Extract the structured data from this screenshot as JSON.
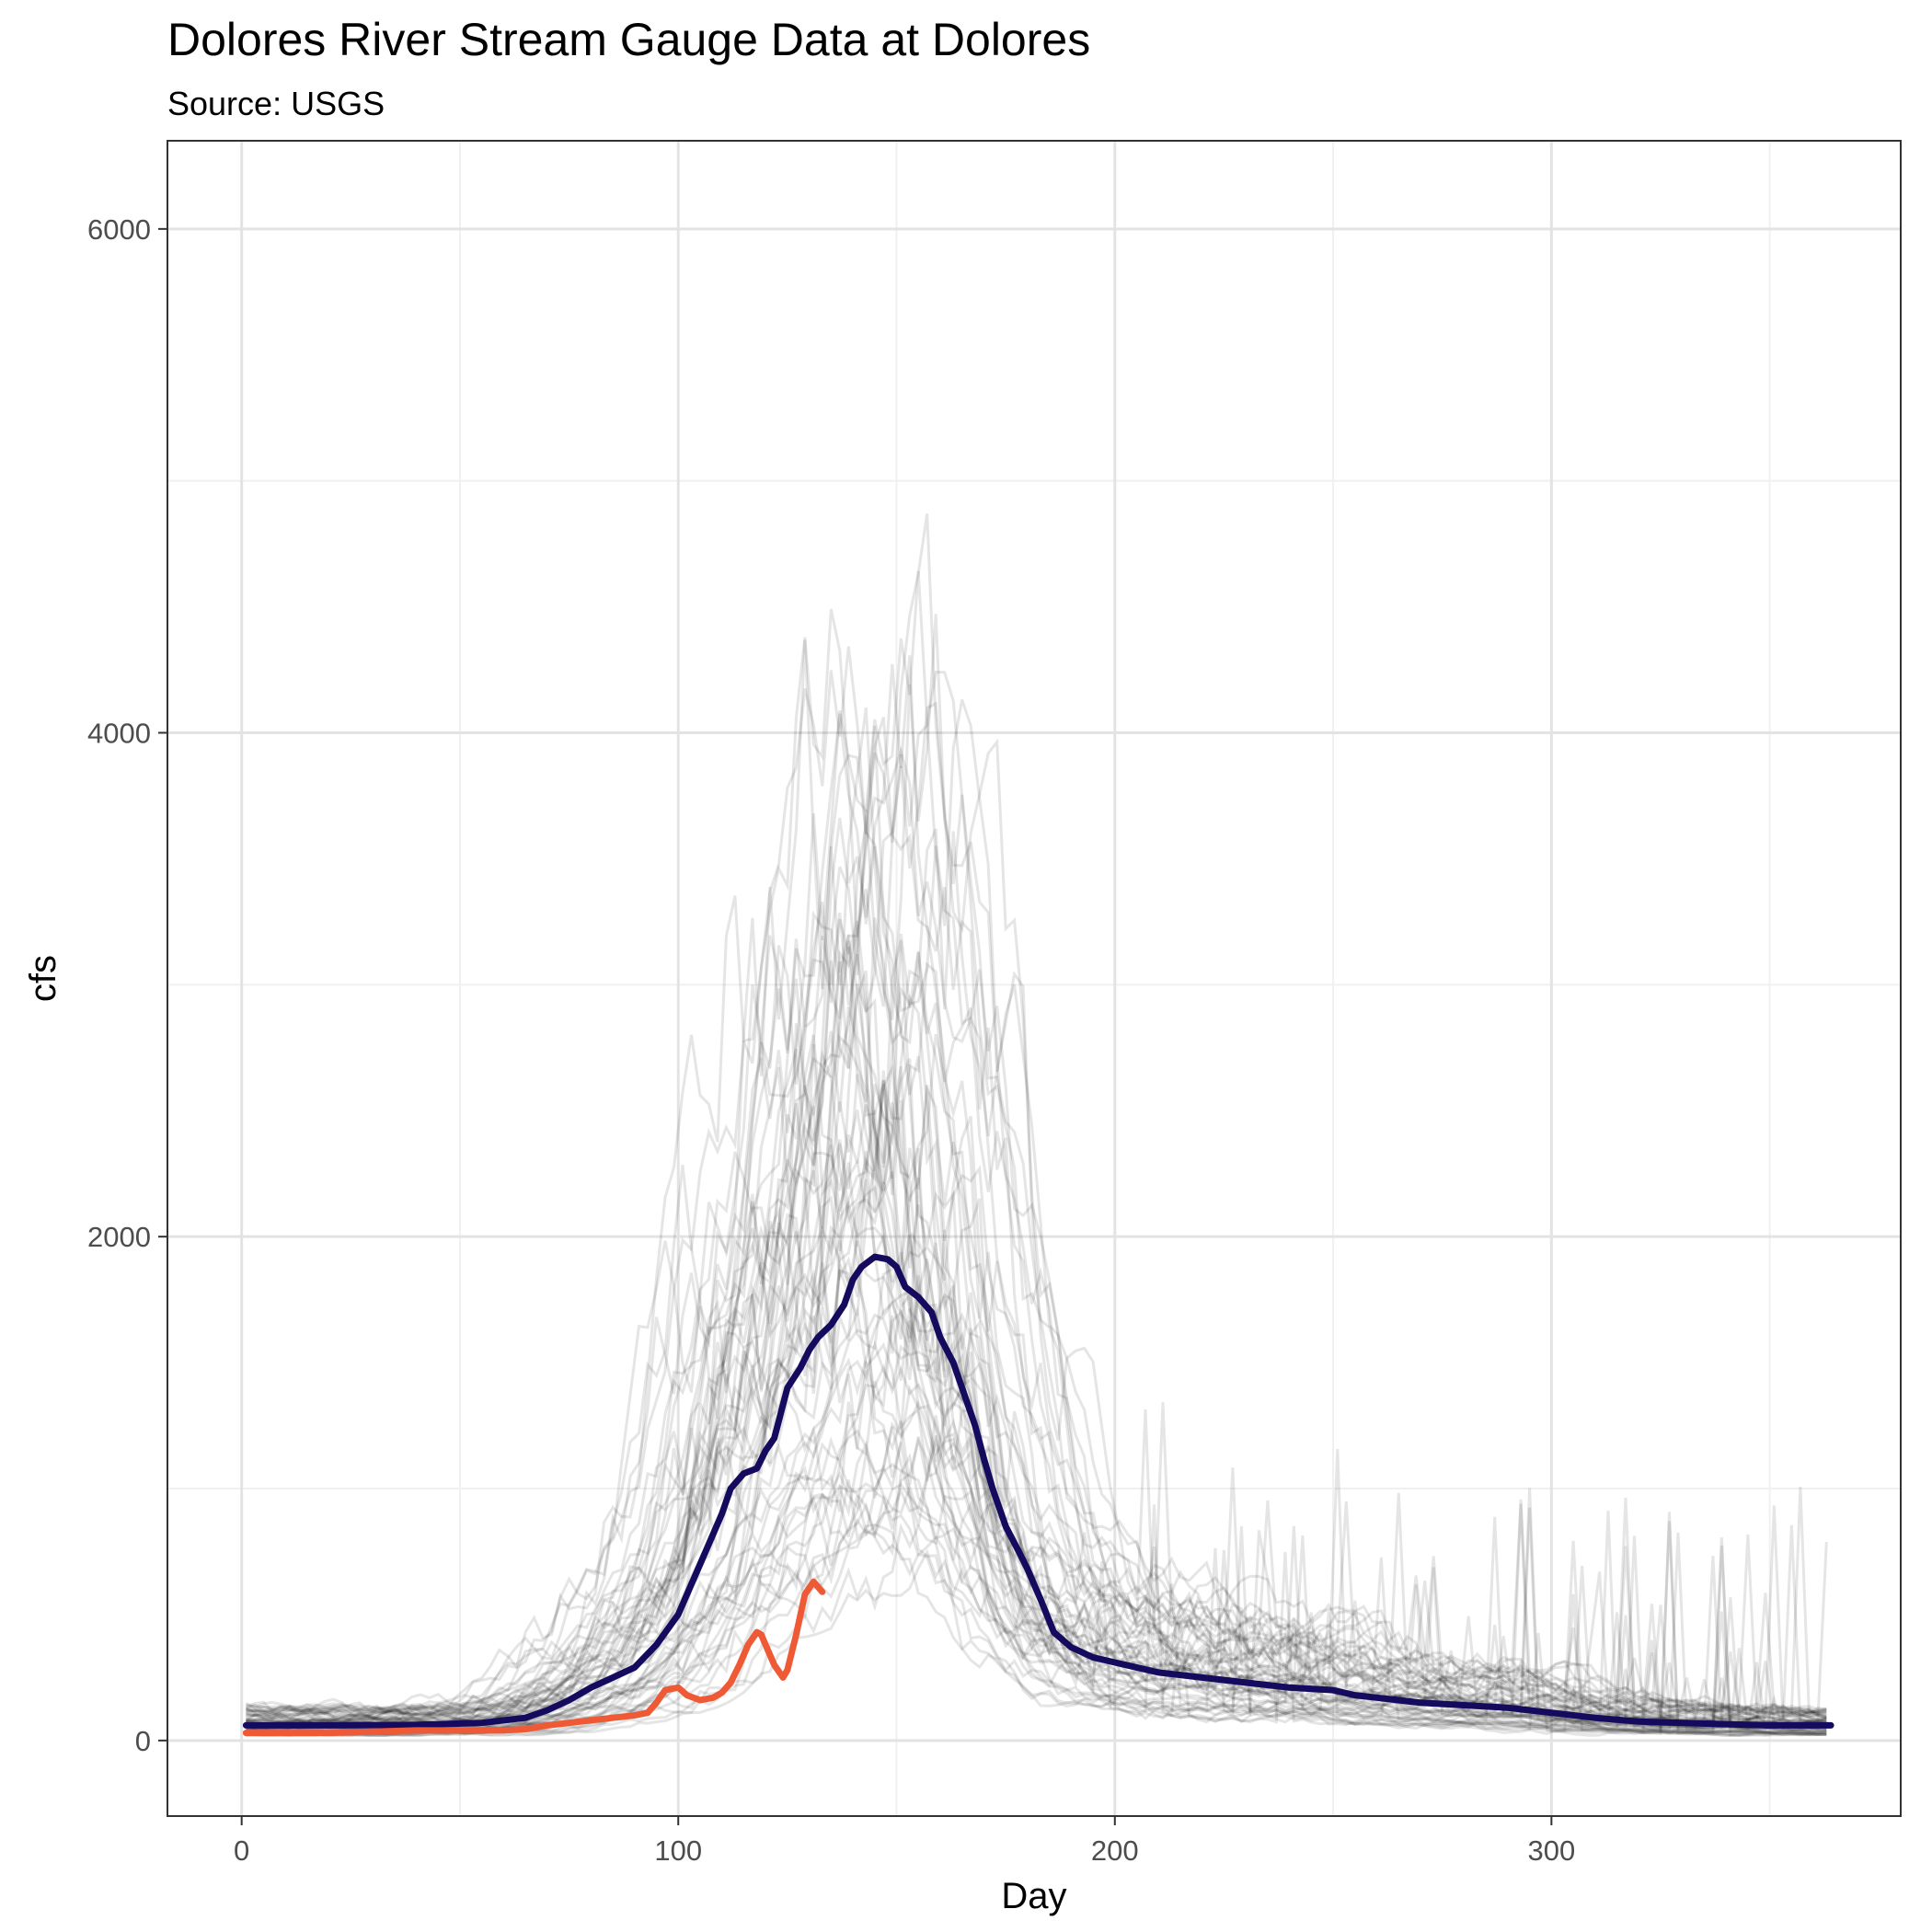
{
  "chart_data": {
    "type": "line",
    "title": "Dolores River Stream Gauge Data at Dolores",
    "subtitle": "Source: USGS",
    "xlabel": "Day",
    "ylabel": "cfs",
    "xlim": [
      -17,
      380
    ],
    "ylim": [
      -300,
      6350
    ],
    "x_ticks": [
      0,
      100,
      200,
      300
    ],
    "y_ticks": [
      0,
      2000,
      4000,
      6000
    ],
    "grid": true,
    "legend": "none",
    "colors": {
      "historical": "#000000",
      "median": "#140a5e",
      "current": "#ee5a36",
      "grid_major": "#e3e3e3",
      "grid_minor": "#f0f0f0",
      "border": "#333333"
    },
    "series": [
      {
        "role": "median",
        "x": [
          1,
          20,
          40,
          55,
          65,
          70,
          75,
          80,
          85,
          90,
          95,
          100,
          105,
          110,
          112,
          115,
          118,
          120,
          122,
          125,
          128,
          130,
          132,
          135,
          138,
          140,
          142,
          145,
          148,
          150,
          152,
          155,
          158,
          160,
          163,
          165,
          168,
          170,
          172,
          175,
          178,
          180,
          183,
          186,
          190,
          195,
          200,
          205,
          210,
          220,
          230,
          240,
          250,
          255,
          260,
          265,
          270,
          280,
          290,
          300,
          310,
          320,
          330,
          340,
          350,
          364
        ],
        "y": [
          60,
          60,
          62,
          70,
          90,
          120,
          160,
          210,
          250,
          290,
          380,
          500,
          700,
          900,
          1000,
          1060,
          1080,
          1150,
          1200,
          1400,
          1480,
          1550,
          1600,
          1650,
          1730,
          1830,
          1880,
          1920,
          1910,
          1880,
          1800,
          1760,
          1700,
          1600,
          1500,
          1400,
          1250,
          1120,
          1000,
          850,
          750,
          680,
          560,
          430,
          370,
          330,
          310,
          290,
          270,
          250,
          230,
          210,
          200,
          180,
          170,
          160,
          150,
          140,
          130,
          110,
          90,
          75,
          70,
          65,
          60,
          60
        ]
      },
      {
        "role": "current",
        "x": [
          1,
          10,
          20,
          30,
          40,
          50,
          60,
          65,
          70,
          75,
          80,
          85,
          90,
          93,
          95,
          97,
          100,
          102,
          105,
          108,
          110,
          112,
          114,
          116,
          118,
          119,
          120,
          122,
          124,
          125,
          127,
          129,
          131,
          133
        ],
        "y": [
          30,
          30,
          30,
          35,
          40,
          40,
          40,
          45,
          60,
          70,
          80,
          90,
          100,
          110,
          150,
          200,
          210,
          180,
          160,
          170,
          190,
          230,
          300,
          380,
          430,
          420,
          380,
          300,
          250,
          280,
          420,
          580,
          630,
          590
        ]
      }
    ],
    "historical": {
      "description_count": 60,
      "alpha": 0.1
    }
  }
}
